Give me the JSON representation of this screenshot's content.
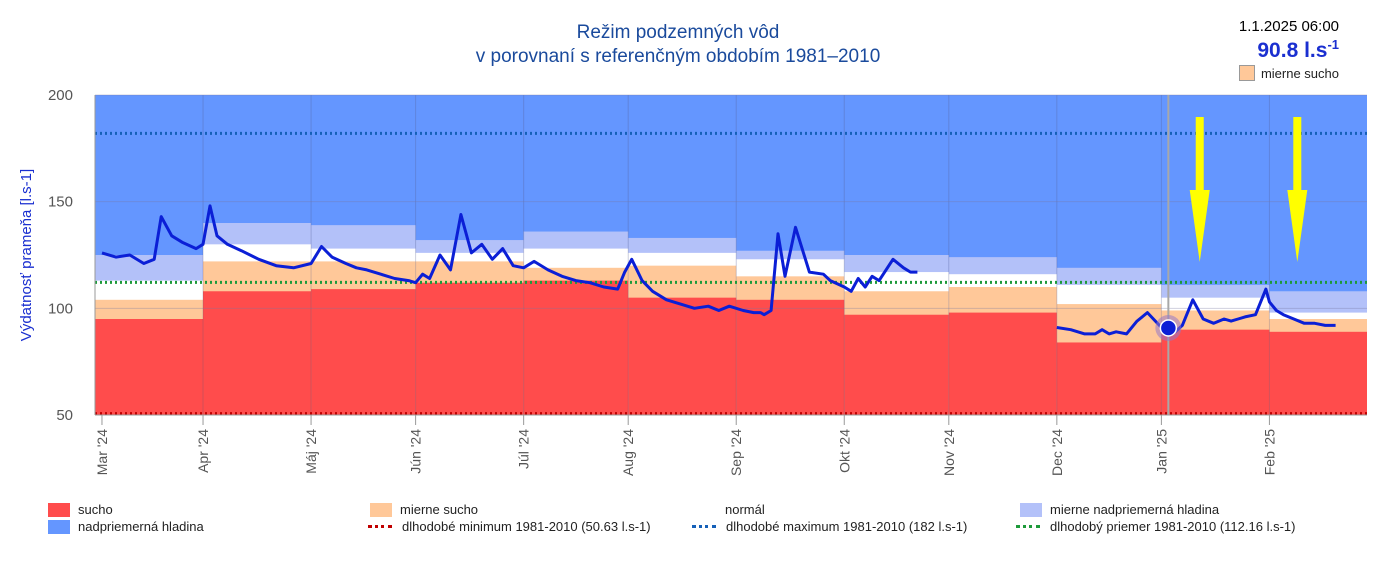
{
  "chart_data": {
    "type": "area",
    "title_line1": "Režim podzemných vôd",
    "title_line2": "v porovnaní s referenčným obdobím 1981–2010",
    "ylabel": "Výdatnosť prameňa [l.s-1]",
    "ylim": [
      50,
      200
    ],
    "yticks": [
      "200",
      "150",
      "100",
      "50"
    ],
    "ytick_values": [
      200,
      150,
      100,
      50
    ],
    "months": [
      "Mar '24",
      "Apr '24",
      "Máj '24",
      "Jún '24",
      "Júl '24",
      "Aug '24",
      "Sep '24",
      "Okt '24",
      "Nov '24",
      "Dec '24",
      "Jan '25",
      "Feb '25"
    ],
    "x_range_days": [
      -2,
      363
    ],
    "bands": {
      "month_start_day": [
        -2,
        29,
        60,
        90,
        121,
        151,
        182,
        213,
        243,
        274,
        304,
        335
      ],
      "month_end_day": [
        29,
        60,
        90,
        121,
        151,
        182,
        213,
        243,
        274,
        304,
        335,
        363
      ],
      "sucho_upper": [
        95,
        108,
        109,
        112,
        113,
        105,
        104,
        97,
        98,
        84,
        90,
        89
      ],
      "mierne_sucho_upper": [
        104,
        122,
        122,
        122,
        119,
        120,
        115,
        108,
        110,
        102,
        99,
        95
      ],
      "normal_upper": [
        113,
        130,
        128,
        126,
        128,
        126,
        123,
        117,
        116,
        111,
        105,
        98
      ],
      "mierne_nadpriemerna_upper": [
        125,
        140,
        139,
        132,
        136,
        133,
        127,
        125,
        124,
        119,
        111,
        108
      ]
    },
    "series": [
      {
        "name": "Výdatnosť prameňa",
        "x_day": [
          0,
          4,
          8,
          12,
          15,
          17,
          20,
          23,
          27,
          29,
          31,
          33,
          36,
          40,
          45,
          50,
          55,
          60,
          63,
          66,
          70,
          73,
          76,
          80,
          84,
          88,
          90,
          92,
          94,
          97,
          100,
          103,
          106,
          109,
          112,
          115,
          118,
          121,
          124,
          128,
          132,
          136,
          140,
          144,
          148,
          150,
          152,
          155,
          158,
          162,
          166,
          170,
          174,
          177,
          180,
          184,
          187,
          189,
          190,
          192,
          194,
          196,
          199,
          203,
          207,
          209,
          213,
          215,
          217,
          219,
          221,
          223,
          227,
          230,
          232,
          234,
          236,
          241,
          247,
          254,
          256,
          258,
          260,
          262,
          264,
          266,
          268,
          270,
          272,
          274,
          278,
          282,
          285,
          287,
          289,
          291,
          294,
          297,
          300,
          304,
          306,
          308,
          310,
          313,
          316,
          319,
          322,
          324,
          326,
          328,
          331,
          334,
          335,
          337,
          339,
          342,
          345,
          348,
          351,
          354
        ],
        "y": [
          126,
          124,
          125,
          121,
          123,
          143,
          134,
          131,
          128,
          130,
          148,
          134,
          130,
          127,
          123,
          120,
          119,
          121,
          129,
          124,
          121,
          119,
          118,
          116,
          114,
          113,
          112,
          116,
          114,
          125,
          118,
          144,
          126,
          130,
          123,
          128,
          120,
          119,
          122,
          118,
          115,
          113,
          112,
          110,
          109,
          117,
          123,
          113,
          108,
          104,
          102,
          100,
          101,
          99,
          101,
          99,
          98,
          98,
          97,
          99,
          135,
          115,
          138,
          117,
          116,
          113,
          110,
          108,
          114,
          110,
          115,
          113,
          123,
          119,
          117,
          117,
          null,
          null,
          null,
          null,
          null,
          null,
          null,
          null,
          null,
          null,
          null,
          null,
          null,
          91,
          90,
          88,
          88,
          90,
          88,
          89,
          88,
          94,
          98,
          91,
          90,
          89,
          92,
          104,
          95,
          93,
          95,
          94,
          95,
          96,
          97,
          109,
          103,
          99,
          97,
          95,
          93,
          93,
          92,
          92
        ]
      }
    ],
    "reference_lines": [
      {
        "name": "dlhodobé minimum 1981-2010",
        "value": 50.63,
        "color": "#c00000"
      },
      {
        "name": "dlhodobé maximum 1981-2010",
        "value": 182,
        "color": "#1560b8"
      },
      {
        "name": "dlhodobý priemer 1981-2010",
        "value": 112.16,
        "color": "#1d9a3a"
      }
    ],
    "current_marker": {
      "x_day": 306,
      "y": 90.8
    },
    "crosshair_x_day": 306,
    "arrows_x_day": [
      315,
      343
    ]
  },
  "reading": {
    "timestamp": "1.1.2025 06:00",
    "value": "90.8 l.s",
    "value_sup": "-1",
    "status": "mierne sucho"
  },
  "legend": [
    {
      "key": "sucho",
      "label": "sucho",
      "color": "#ff4c4c",
      "kind": "box"
    },
    {
      "key": "mierne_sucho",
      "label": "mierne sucho",
      "color": "#ffc899",
      "kind": "box"
    },
    {
      "key": "normal",
      "label": "normál",
      "color": "#ffffff",
      "kind": "box"
    },
    {
      "key": "mierne_nadpriemerna",
      "label": "mierne nadpriemerná hladina",
      "color": "#b3c1f9",
      "kind": "box"
    },
    {
      "key": "nadpriemerna",
      "label": "nadpriemerná hladina",
      "color": "#6496ff",
      "kind": "box"
    },
    {
      "key": "minimum",
      "label": "dlhodobé minimum 1981-2010 (50.63 l.s-1)",
      "color": "#c00000",
      "kind": "dot"
    },
    {
      "key": "maximum",
      "label": "dlhodobé maximum 1981-2010 (182 l.s-1)",
      "color": "#1560b8",
      "kind": "dot"
    },
    {
      "key": "priemer",
      "label": "dlhodobý priemer 1981-2010 (112.16 l.s-1)",
      "color": "#1d9a3a",
      "kind": "dot"
    }
  ],
  "colors": {
    "sucho": "#ff4c4c",
    "mierne_sucho": "#ffc899",
    "normal": "#ffffff",
    "mierne_nadpriemerna": "#b3c1f9",
    "nadpriemerna": "#6496ff",
    "series": "#0b1fd6",
    "title": "#1a4a9c",
    "arrow": "#ffff00"
  }
}
